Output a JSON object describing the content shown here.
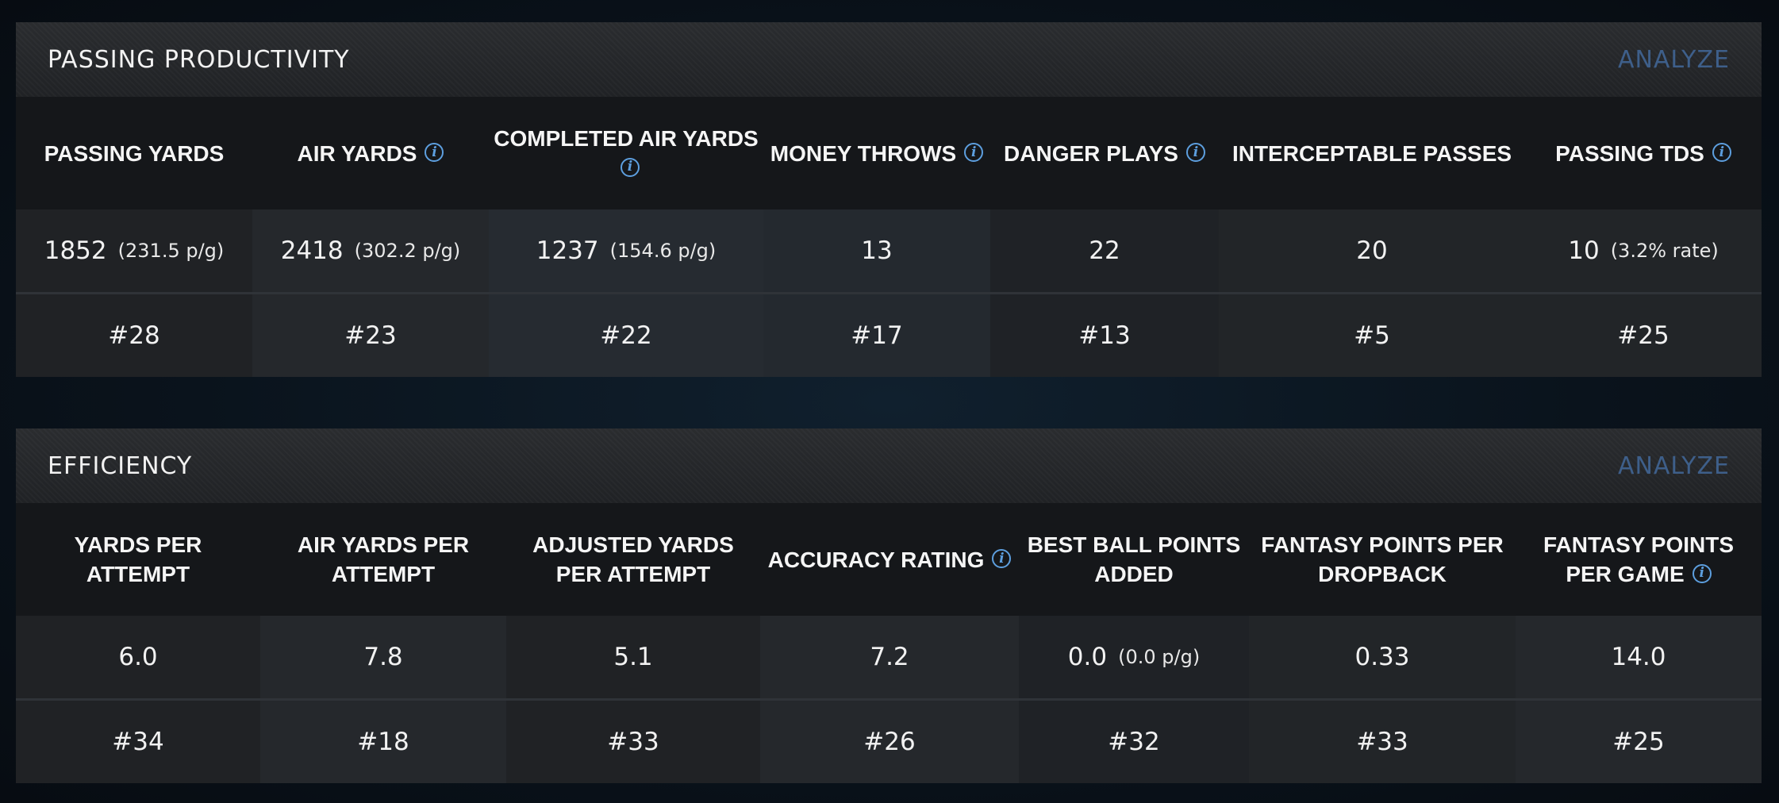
{
  "sections": [
    {
      "title": "PASSING PRODUCTIVITY",
      "analyze_label": "ANALYZE",
      "columns": [
        {
          "header": "PASSING YARDS",
          "info": false,
          "value": "1852",
          "sub": "(231.5 p/g)",
          "rank": "#28"
        },
        {
          "header": "AIR YARDS",
          "info": true,
          "value": "2418",
          "sub": "(302.2 p/g)",
          "rank": "#23"
        },
        {
          "header": "COMPLETED AIR YARDS",
          "info": true,
          "value": "1237",
          "sub": "(154.6 p/g)",
          "rank": "#22"
        },
        {
          "header": "MONEY THROWS",
          "info": true,
          "value": "13",
          "sub": "",
          "rank": "#17"
        },
        {
          "header": "DANGER PLAYS",
          "info": true,
          "value": "22",
          "sub": "",
          "rank": "#13"
        },
        {
          "header": "INTERCEPTABLE PASSES",
          "info": false,
          "value": "20",
          "sub": "",
          "rank": "#5"
        },
        {
          "header": "PASSING TDS",
          "info": true,
          "value": "10",
          "sub": "(3.2% rate)",
          "rank": "#25"
        }
      ]
    },
    {
      "title": "EFFICIENCY",
      "analyze_label": "ANALYZE",
      "columns": [
        {
          "header": "YARDS PER ATTEMPT",
          "info": false,
          "value": "6.0",
          "sub": "",
          "rank": "#34"
        },
        {
          "header": "AIR YARDS PER ATTEMPT",
          "info": false,
          "value": "7.8",
          "sub": "",
          "rank": "#18"
        },
        {
          "header": "ADJUSTED YARDS PER ATTEMPT",
          "info": false,
          "value": "5.1",
          "sub": "",
          "rank": "#33"
        },
        {
          "header": "ACCURACY RATING",
          "info": true,
          "value": "7.2",
          "sub": "",
          "rank": "#26"
        },
        {
          "header": "BEST BALL POINTS ADDED",
          "info": false,
          "value": "0.0",
          "sub": "(0.0 p/g)",
          "rank": "#32"
        },
        {
          "header": "FANTASY POINTS PER DROPBACK",
          "info": false,
          "value": "0.33",
          "sub": "",
          "rank": "#33"
        },
        {
          "header": "FANTASY POINTS PER GAME",
          "info": true,
          "value": "14.0",
          "sub": "",
          "rank": "#25"
        }
      ]
    }
  ],
  "icons": {
    "info": "info-icon",
    "info_glyph": "i"
  },
  "colors": {
    "accent_info": "#5d9fdf",
    "analyze_link": "#3e5f8a"
  }
}
